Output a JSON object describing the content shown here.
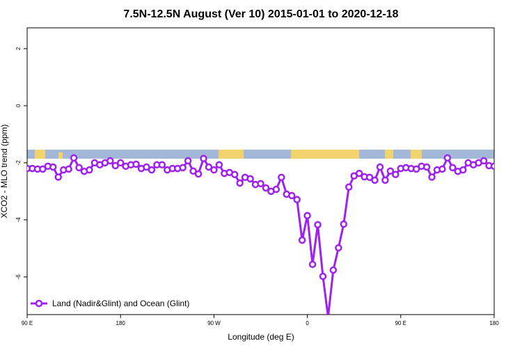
{
  "chart_data": {
    "type": "line",
    "title": "7.5N-12.5N August (Ver 10)   2015-01-01 to 2020-12-18",
    "x_label": "Longitude (deg E)",
    "y_label": "XCO2 - MLO trend (ppm)",
    "x": [
      90,
      95,
      100,
      105,
      110,
      115,
      120,
      125,
      130,
      135,
      140,
      145,
      150,
      155,
      160,
      165,
      170,
      175,
      180,
      185,
      190,
      195,
      200,
      205,
      210,
      215,
      220,
      225,
      230,
      235,
      240,
      245,
      250,
      255,
      260,
      265,
      270,
      275,
      280,
      285,
      290,
      295,
      300,
      305,
      310,
      315,
      320,
      325,
      330,
      335,
      340,
      345,
      350,
      355,
      360,
      365,
      370,
      375,
      380,
      385,
      390,
      395,
      400,
      405,
      410,
      415,
      420,
      425,
      430,
      435,
      440,
      445,
      450,
      455,
      460,
      465,
      470,
      475,
      480,
      485,
      490,
      495,
      500,
      505,
      510,
      515,
      520,
      525,
      530,
      535,
      540
    ],
    "series": [
      {
        "name": "Land (Nadir&Glint) and Ocean (Glint)",
        "color": "#a020f0",
        "values": [
          -2.2,
          -2.2,
          -2.22,
          -2.22,
          -2.12,
          -2.15,
          -2.5,
          -2.25,
          -2.22,
          -1.83,
          -2.17,
          -2.3,
          -2.25,
          -2.0,
          -2.07,
          -2.0,
          -1.93,
          -2.1,
          -2.0,
          -2.12,
          -2.07,
          -2.05,
          -2.2,
          -2.15,
          -2.25,
          -2.07,
          -2.07,
          -2.25,
          -2.2,
          -2.2,
          -2.17,
          -1.93,
          -2.29,
          -2.39,
          -1.85,
          -2.15,
          -2.25,
          -2.07,
          -2.37,
          -2.34,
          -2.41,
          -2.71,
          -2.51,
          -2.56,
          -2.76,
          -2.73,
          -2.88,
          -3.0,
          -2.93,
          -2.51,
          -3.1,
          -3.15,
          -3.29,
          -4.71,
          -3.85,
          -5.56,
          -4.17,
          -5.98,
          -7.4,
          -5.76,
          -4.98,
          -4.15,
          -2.85,
          -2.46,
          -2.37,
          -2.49,
          -2.51,
          -2.61,
          -2.15,
          -2.61,
          -2.29,
          -2.41,
          -2.2,
          -2.17,
          -2.2,
          -2.22,
          -2.12,
          -2.15,
          -2.5,
          -2.25,
          -2.22,
          -1.83,
          -2.17,
          -2.3,
          -2.25,
          -2.0,
          -2.07,
          -2.0,
          -1.93,
          -2.1,
          -2.12
        ]
      }
    ],
    "xlim": [
      90,
      540
    ],
    "xticks": [
      {
        "value": 90,
        "label": "90 E"
      },
      180,
      {
        "value": 270,
        "label": "90 W"
      },
      {
        "value": 360,
        "label": "0"
      },
      {
        "value": 450,
        "label": "90 E"
      },
      {
        "value": 540,
        "label": "180"
      }
    ],
    "ylim": [
      -7.32,
      2.73
    ],
    "yticks": [
      -6,
      -4,
      -2,
      0,
      2
    ],
    "legend": "bottom-left"
  }
}
